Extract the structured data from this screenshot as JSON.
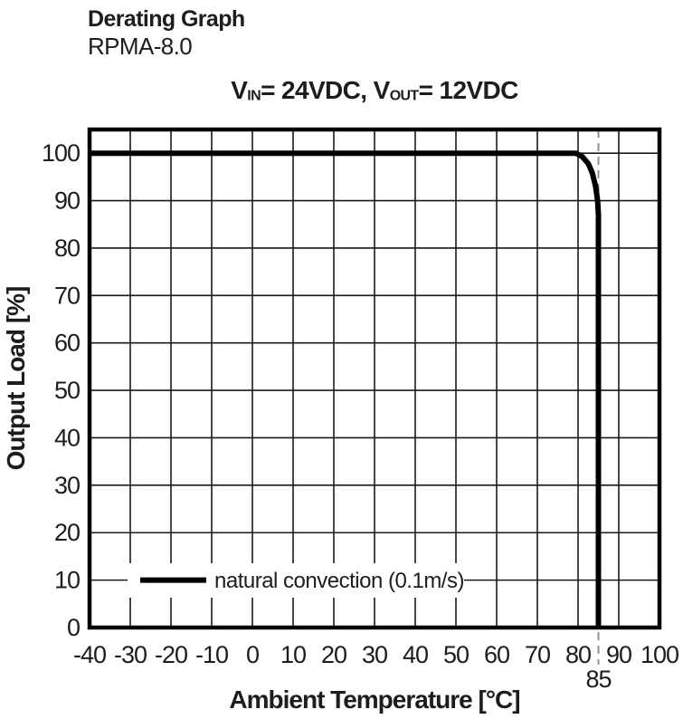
{
  "header": {
    "title": "Derating Graph",
    "subtitle": "RPMA-8.0",
    "chart_title_plain": "VIN= 24VDC, VOUT= 12VDC",
    "chart_title_parts": [
      {
        "text": "V"
      },
      {
        "text": "IN",
        "subscript": true
      },
      {
        "text": "= 24VDC, V"
      },
      {
        "text": "OUT",
        "subscript": true
      },
      {
        "text": "= 12VDC"
      }
    ]
  },
  "colors": {
    "background": "#ffffff",
    "text": "#1d1d1b",
    "frame": "#000000",
    "grid": "#1a1a1a",
    "series_line": "#000000",
    "dashed_annotation": "#909090"
  },
  "chart_data": {
    "type": "line",
    "title": "VIN= 24VDC, VOUT= 12VDC",
    "xlabel": "Ambient Temperature [°C]",
    "ylabel": "Output Load [%]",
    "xlim": [
      -40,
      100
    ],
    "ylim": [
      0,
      105
    ],
    "x_ticks": [
      -40,
      -30,
      -20,
      -10,
      0,
      10,
      20,
      30,
      40,
      50,
      60,
      70,
      80,
      90,
      100
    ],
    "y_ticks": [
      0,
      10,
      20,
      30,
      40,
      50,
      60,
      70,
      80,
      90,
      100
    ],
    "grid": true,
    "series": [
      {
        "name": "natural convection (0.1m/s)",
        "color": "#000000",
        "points": [
          [
            -40,
            100
          ],
          [
            79.5,
            100
          ],
          [
            81,
            99.3
          ],
          [
            82.5,
            97.8
          ],
          [
            83.5,
            95.8
          ],
          [
            84.3,
            93
          ],
          [
            84.8,
            90
          ],
          [
            85,
            87
          ],
          [
            85,
            0
          ]
        ]
      }
    ],
    "annotations": [
      {
        "type": "vline",
        "x": 85,
        "label": "85",
        "style": "dashed",
        "color": "#909090"
      }
    ],
    "legend": {
      "label": "natural convection (0.1m/s)",
      "position": "inside-bottom-left",
      "y_level": 10
    }
  }
}
